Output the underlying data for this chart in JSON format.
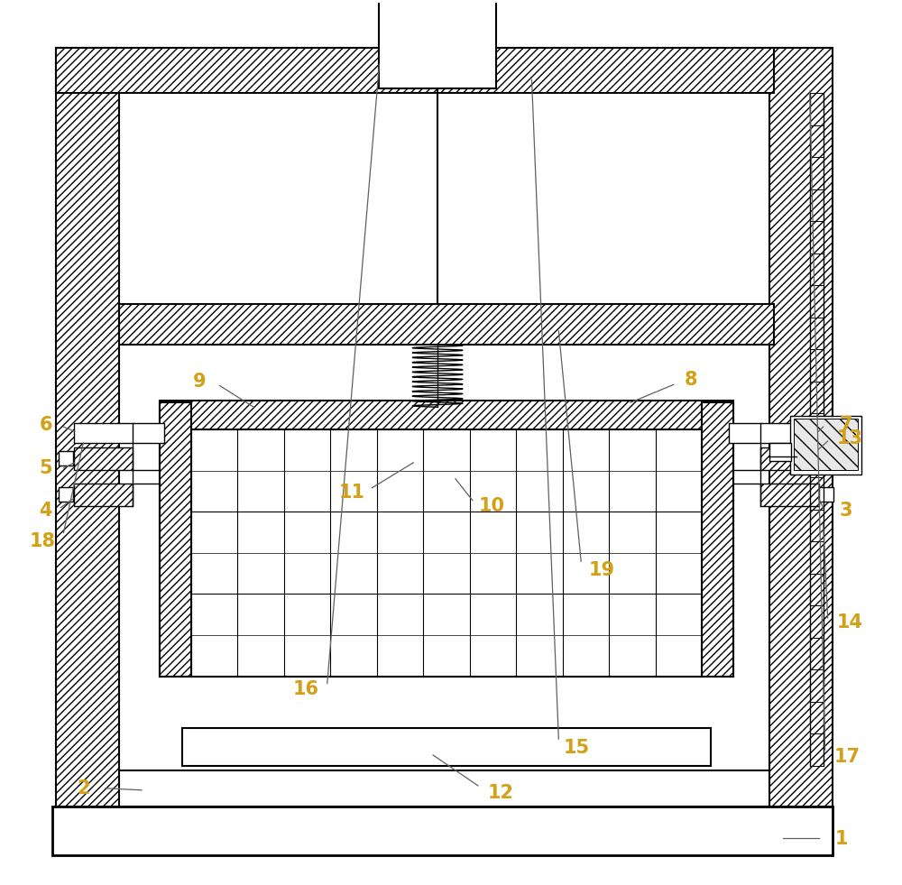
{
  "bg_color": "#ffffff",
  "line_color": "#000000",
  "label_color": "#d4a017",
  "fig_width": 10.0,
  "fig_height": 9.81
}
